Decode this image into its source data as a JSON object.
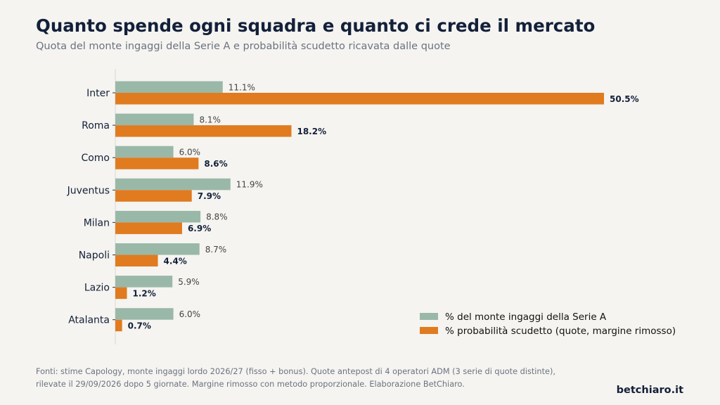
{
  "header": {
    "title": "Quanto spende ogni squadra e quanto ci crede il mercato",
    "subtitle": "Quota del monte ingaggi della Serie A e probabilità scudetto ricavata dalle quote"
  },
  "chart_data": {
    "type": "bar",
    "orientation": "horizontal",
    "categories": [
      "Inter",
      "Roma",
      "Como",
      "Juventus",
      "Milan",
      "Napoli",
      "Lazio",
      "Atalanta"
    ],
    "series": [
      {
        "name": "% del monte ingaggi della Serie A",
        "color": "#9ab8a8",
        "values": [
          11.1,
          8.1,
          6.0,
          11.9,
          8.8,
          8.7,
          5.9,
          6.0
        ],
        "labels": [
          "11.1%",
          "8.1%",
          "6.0%",
          "11.9%",
          "8.8%",
          "8.7%",
          "5.9%",
          "6.0%"
        ]
      },
      {
        "name": "% probabilità scudetto (quote, margine rimosso)",
        "color": "#e07b20",
        "values": [
          50.5,
          18.2,
          8.6,
          7.9,
          6.9,
          4.4,
          1.2,
          0.7
        ],
        "labels": [
          "50.5%",
          "18.2%",
          "8.6%",
          "7.9%",
          "6.9%",
          "4.4%",
          "1.2%",
          "0.7%"
        ]
      }
    ],
    "grid": false,
    "legend_position": "bottom-right"
  },
  "footer": {
    "note_line1": "Fonti: stime Capology, monte ingaggi lordo 2026/27 (fisso + bonus). Quote antepost di 4 operatori ADM (3 serie di quote distinte),",
    "note_line2": "rilevate il 29/09/2026 dopo 5 giornate. Margine rimosso con metodo proporzionale. Elaborazione BetChiaro.",
    "brand": "betchiaro.it"
  }
}
